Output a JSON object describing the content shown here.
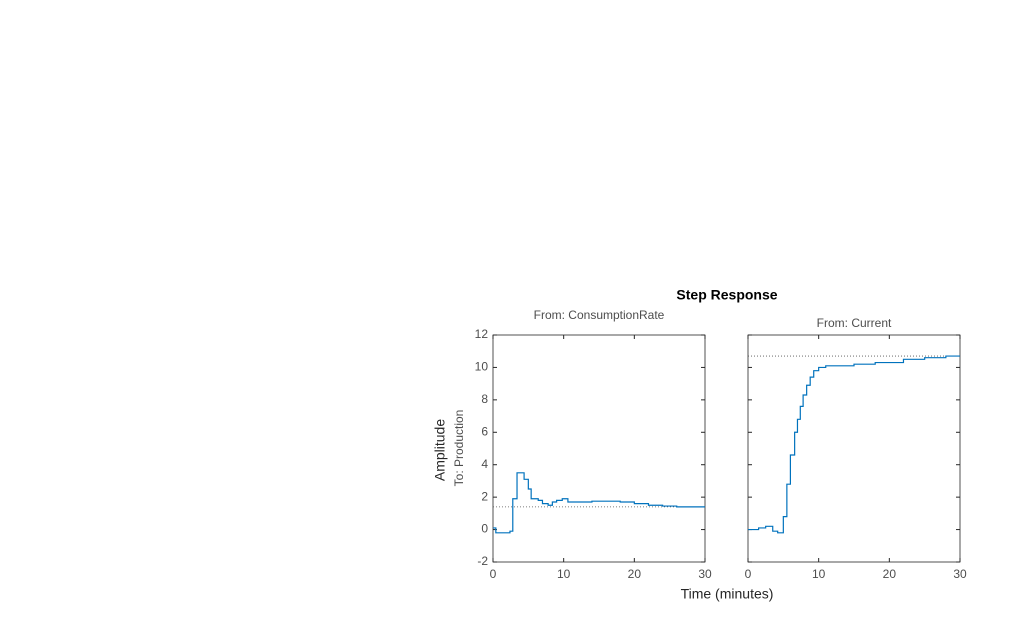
{
  "title": "Step Response",
  "ylabel": "Amplitude",
  "row_label": "To: Production",
  "xlabel": "Time (minutes)",
  "chart_data": [
    {
      "type": "stairs",
      "subtitle": "From: ConsumptionRate",
      "color": "#0072bd",
      "xlim": [
        0,
        30
      ],
      "xticks": [
        0,
        10,
        20,
        30
      ],
      "ylim": [
        -2,
        12
      ],
      "yticks": [
        -2,
        0,
        2,
        4,
        6,
        8,
        10,
        12
      ],
      "steady_state": 1.4,
      "x": [
        0,
        0.4,
        2.4,
        2.8,
        3.4,
        4.4,
        5.0,
        5.4,
        6.4,
        7.0,
        7.8,
        8.4,
        9.0,
        9.8,
        10.6,
        12,
        14,
        16,
        18,
        20,
        22,
        24,
        26,
        30
      ],
      "values": [
        0.1,
        -0.2,
        -0.1,
        1.9,
        3.5,
        3.1,
        2.5,
        1.9,
        1.8,
        1.6,
        1.5,
        1.7,
        1.8,
        1.9,
        1.7,
        1.7,
        1.75,
        1.75,
        1.7,
        1.6,
        1.5,
        1.45,
        1.4,
        1.4
      ]
    },
    {
      "type": "stairs",
      "subtitle": "From: Current",
      "color": "#0072bd",
      "xlim": [
        0,
        30
      ],
      "xticks": [
        0,
        10,
        20,
        30
      ],
      "steady_state": 10.7,
      "x": [
        0,
        1.5,
        2.5,
        3.5,
        4.2,
        5.0,
        5.5,
        6.0,
        6.6,
        7.0,
        7.4,
        7.8,
        8.3,
        8.8,
        9.3,
        10,
        11,
        15,
        18,
        22,
        25,
        28,
        30
      ],
      "values": [
        0,
        0.1,
        0.2,
        -0.1,
        -0.2,
        0.8,
        2.8,
        4.6,
        6.0,
        6.8,
        7.6,
        8.3,
        8.9,
        9.4,
        9.8,
        10.0,
        10.1,
        10.2,
        10.3,
        10.5,
        10.6,
        10.7,
        10.7
      ]
    }
  ]
}
